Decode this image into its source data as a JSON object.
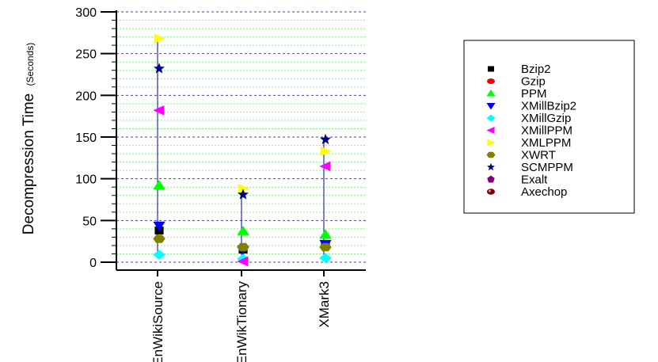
{
  "chart_data": {
    "type": "scatter",
    "title": "",
    "xlabel": "",
    "ylabel": "Decompression Time",
    "ylabel_unit": "(Seconds)",
    "ylim": [
      0,
      300
    ],
    "yticks": [
      0,
      50,
      100,
      150,
      200,
      250,
      300
    ],
    "categories": [
      "EnWikiSource",
      "EnWikTionary",
      "XMark3"
    ],
    "grid": "horizontal dashed (major and minor)",
    "legend_position": "right",
    "series": [
      {
        "name": "Bzip2",
        "color": "#000000",
        "marker": "square",
        "values": [
          38,
          15,
          20
        ]
      },
      {
        "name": "Gzip",
        "color": "#ff0000",
        "marker": "circle",
        "values": [
          null,
          null,
          null
        ]
      },
      {
        "name": "PPM",
        "color": "#00ff00",
        "marker": "triangle-up",
        "values": [
          92,
          37,
          33
        ]
      },
      {
        "name": "XMillBzip2",
        "color": "#0000ff",
        "marker": "triangle-down",
        "values": [
          44,
          15,
          22
        ]
      },
      {
        "name": "XMillGzip",
        "color": "#00ffff",
        "marker": "diamond",
        "values": [
          9,
          4,
          5
        ]
      },
      {
        "name": "XMillPPM",
        "color": "#ff00ff",
        "marker": "triangle-left",
        "values": [
          182,
          1,
          115
        ]
      },
      {
        "name": "XMLPPM",
        "color": "#ffff00",
        "marker": "triangle-right",
        "values": [
          268,
          88,
          133
        ]
      },
      {
        "name": "XWRT",
        "color": "#808000",
        "marker": "hexagon",
        "values": [
          28,
          18,
          18
        ]
      },
      {
        "name": "SCMPPM",
        "color": "#000080",
        "marker": "star",
        "values": [
          232,
          81,
          147
        ]
      },
      {
        "name": "Exalt",
        "color": "#800080",
        "marker": "pentagon",
        "values": [
          null,
          null,
          null
        ]
      },
      {
        "name": "Axechop",
        "color": "#800000",
        "marker": "ball",
        "values": [
          null,
          null,
          null
        ]
      }
    ]
  }
}
